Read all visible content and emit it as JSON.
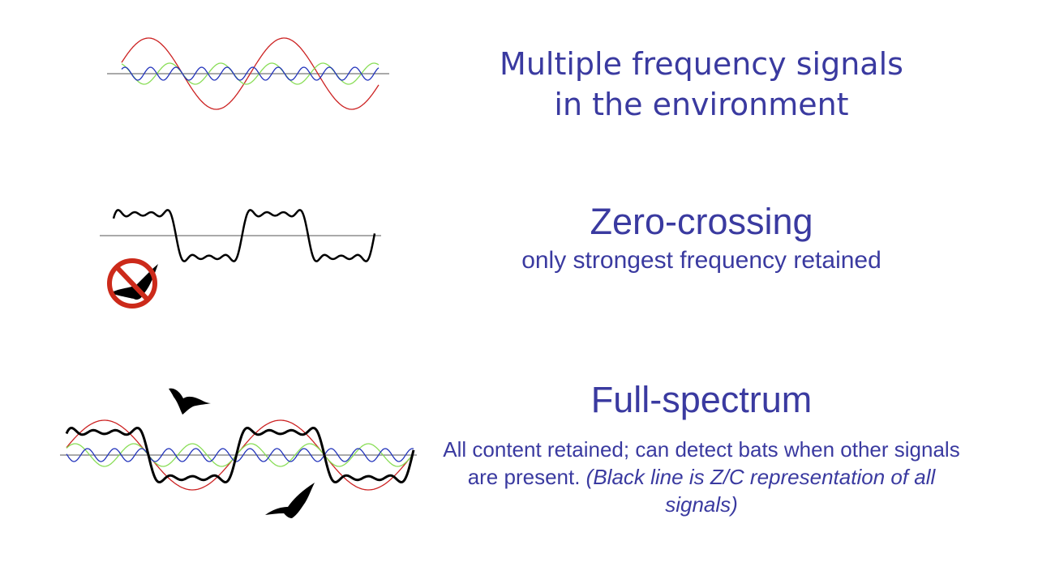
{
  "panels": [
    {
      "title": "Multiple frequency signals",
      "title_line2": "in the environment"
    },
    {
      "title": "Zero-crossing",
      "subtitle": "only strongest frequency retained"
    },
    {
      "title": "Full-spectrum",
      "body": "All content retained; can detect bats when other signals are present. ",
      "body_italic": "(Black line is Z/C representation of all signals)"
    }
  ],
  "colors": {
    "text": "#3a3aa0",
    "low_freq": "#cc2222",
    "mid_freq": "#88dd55",
    "high_freq": "#2233bb",
    "zc": "#000000",
    "no_sign": "#cc2a1a"
  },
  "icons": [
    "bat-icon",
    "no-bat-icon"
  ]
}
